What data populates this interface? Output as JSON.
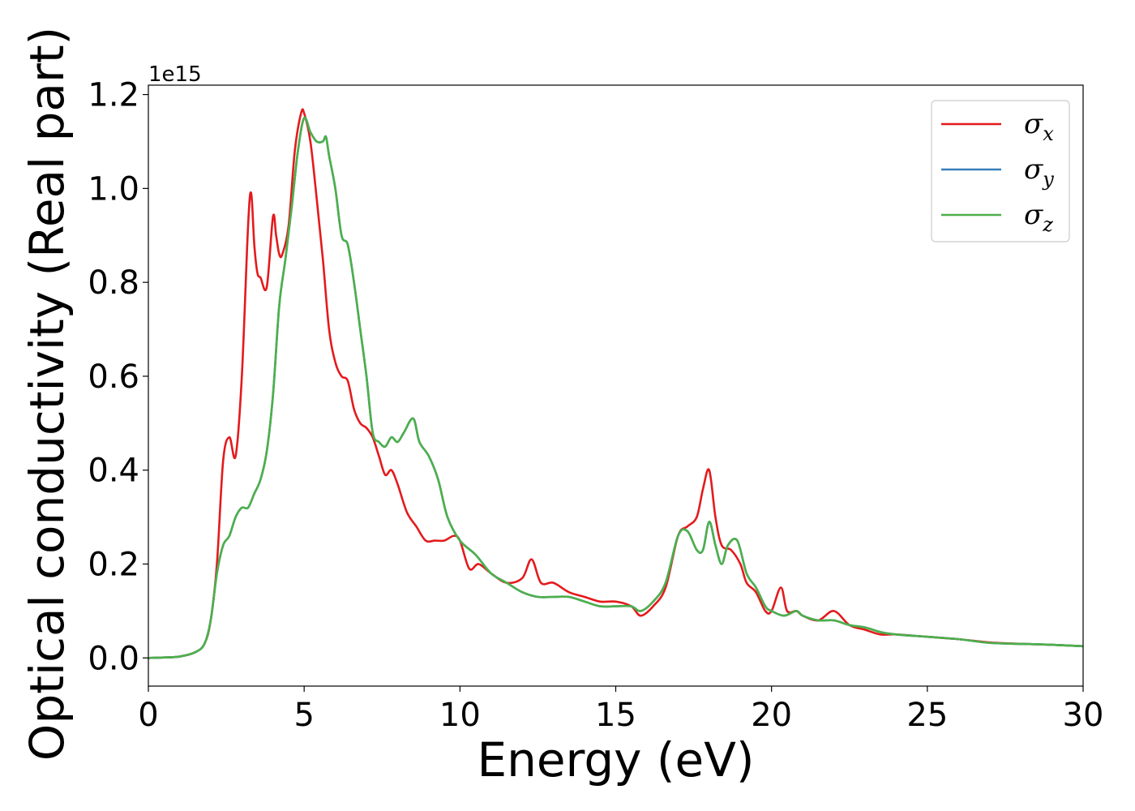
{
  "chart_data": {
    "type": "line",
    "xlabel": "Energy (eV)",
    "ylabel": "Optical conductivity (Real part)",
    "y_offset_text": "1e15",
    "xlim": [
      0,
      30
    ],
    "ylim": [
      -0.06,
      1.22
    ],
    "xticks": [
      0,
      5,
      10,
      15,
      20,
      25,
      30
    ],
    "xtick_labels": [
      "0",
      "5",
      "10",
      "15",
      "20",
      "25",
      "30"
    ],
    "yticks": [
      0.0,
      0.2,
      0.4,
      0.6,
      0.8,
      1.0,
      1.2
    ],
    "ytick_labels": [
      "0.0",
      "0.2",
      "0.4",
      "0.6",
      "0.8",
      "1.0",
      "1.2"
    ],
    "legend_position": "top-right",
    "grid": false,
    "series": [
      {
        "name": "σx",
        "name_base": "σ",
        "name_sub": "x",
        "color": "#e41a1c",
        "x": [
          0,
          0.5,
          1.0,
          1.5,
          1.8,
          2.0,
          2.2,
          2.4,
          2.6,
          2.8,
          3.0,
          3.2,
          3.3,
          3.4,
          3.5,
          3.6,
          3.8,
          4.0,
          4.1,
          4.2,
          4.3,
          4.5,
          4.7,
          4.9,
          5.0,
          5.2,
          5.4,
          5.6,
          5.8,
          6.0,
          6.2,
          6.4,
          6.6,
          6.8,
          7.0,
          7.2,
          7.4,
          7.6,
          7.8,
          8.0,
          8.3,
          8.6,
          8.9,
          9.2,
          9.5,
          9.8,
          10.0,
          10.3,
          10.6,
          11.0,
          11.5,
          12.0,
          12.3,
          12.6,
          13.0,
          13.5,
          14.0,
          14.5,
          15.0,
          15.5,
          15.8,
          16.2,
          16.6,
          17.0,
          17.3,
          17.6,
          17.8,
          18.0,
          18.2,
          18.4,
          18.7,
          19.0,
          19.2,
          19.5,
          19.8,
          20.0,
          20.3,
          20.5,
          20.8,
          21.0,
          21.5,
          22.0,
          22.5,
          23.0,
          23.5,
          24.0,
          25.0,
          26.0,
          27.0,
          28.0,
          29.0,
          30.0
        ],
        "y": [
          0.0,
          0.001,
          0.003,
          0.012,
          0.03,
          0.08,
          0.2,
          0.42,
          0.47,
          0.43,
          0.6,
          0.92,
          0.99,
          0.88,
          0.82,
          0.81,
          0.79,
          0.94,
          0.9,
          0.86,
          0.86,
          0.92,
          1.08,
          1.16,
          1.16,
          1.1,
          0.98,
          0.85,
          0.7,
          0.63,
          0.6,
          0.59,
          0.53,
          0.5,
          0.49,
          0.47,
          0.43,
          0.39,
          0.4,
          0.37,
          0.31,
          0.28,
          0.25,
          0.25,
          0.25,
          0.26,
          0.25,
          0.19,
          0.2,
          0.18,
          0.16,
          0.17,
          0.21,
          0.16,
          0.16,
          0.14,
          0.13,
          0.12,
          0.12,
          0.11,
          0.09,
          0.11,
          0.15,
          0.26,
          0.28,
          0.3,
          0.36,
          0.4,
          0.3,
          0.24,
          0.23,
          0.2,
          0.16,
          0.14,
          0.1,
          0.1,
          0.15,
          0.1,
          0.1,
          0.09,
          0.08,
          0.1,
          0.07,
          0.06,
          0.05,
          0.05,
          0.045,
          0.04,
          0.033,
          0.03,
          0.028,
          0.025
        ]
      },
      {
        "name": "σy",
        "name_base": "σ",
        "name_sub": "y",
        "color": "#377eb8",
        "x": [
          0,
          0.5,
          1.0,
          1.5,
          1.8,
          2.0,
          2.2,
          2.4,
          2.6,
          2.8,
          3.0,
          3.2,
          3.4,
          3.6,
          3.8,
          4.0,
          4.2,
          4.4,
          4.6,
          4.8,
          5.0,
          5.2,
          5.4,
          5.6,
          5.7,
          5.8,
          6.0,
          6.2,
          6.4,
          6.6,
          6.8,
          7.0,
          7.2,
          7.4,
          7.6,
          7.8,
          8.0,
          8.2,
          8.5,
          8.7,
          9.0,
          9.3,
          9.6,
          10.0,
          10.5,
          11.0,
          11.5,
          12.0,
          12.5,
          13.0,
          13.5,
          14.0,
          14.5,
          15.0,
          15.5,
          15.8,
          16.2,
          16.6,
          17.0,
          17.3,
          17.6,
          17.8,
          18.0,
          18.2,
          18.4,
          18.6,
          18.9,
          19.2,
          19.5,
          19.8,
          20.0,
          20.4,
          20.8,
          21.0,
          21.5,
          22.0,
          22.5,
          23.0,
          23.5,
          24.0,
          25.0,
          26.0,
          27.0,
          28.0,
          29.0,
          30.0
        ],
        "y": [
          0.0,
          0.001,
          0.003,
          0.012,
          0.03,
          0.08,
          0.18,
          0.24,
          0.26,
          0.3,
          0.32,
          0.32,
          0.35,
          0.38,
          0.44,
          0.56,
          0.75,
          0.85,
          0.96,
          1.08,
          1.15,
          1.12,
          1.1,
          1.1,
          1.11,
          1.07,
          1.0,
          0.9,
          0.88,
          0.8,
          0.7,
          0.6,
          0.48,
          0.46,
          0.45,
          0.47,
          0.46,
          0.48,
          0.51,
          0.46,
          0.43,
          0.38,
          0.3,
          0.25,
          0.22,
          0.18,
          0.16,
          0.14,
          0.13,
          0.13,
          0.13,
          0.12,
          0.11,
          0.11,
          0.11,
          0.1,
          0.12,
          0.16,
          0.26,
          0.27,
          0.23,
          0.23,
          0.29,
          0.24,
          0.2,
          0.24,
          0.25,
          0.18,
          0.15,
          0.11,
          0.1,
          0.09,
          0.1,
          0.09,
          0.08,
          0.08,
          0.07,
          0.065,
          0.055,
          0.05,
          0.045,
          0.04,
          0.032,
          0.03,
          0.028,
          0.025
        ]
      },
      {
        "name": "σz",
        "name_base": "σ",
        "name_sub": "z",
        "color": "#4daf4a",
        "x": [
          0,
          0.5,
          1.0,
          1.5,
          1.8,
          2.0,
          2.2,
          2.4,
          2.6,
          2.8,
          3.0,
          3.2,
          3.4,
          3.6,
          3.8,
          4.0,
          4.2,
          4.4,
          4.6,
          4.8,
          5.0,
          5.2,
          5.4,
          5.6,
          5.7,
          5.8,
          6.0,
          6.2,
          6.4,
          6.6,
          6.8,
          7.0,
          7.2,
          7.4,
          7.6,
          7.8,
          8.0,
          8.2,
          8.5,
          8.7,
          9.0,
          9.3,
          9.6,
          10.0,
          10.5,
          11.0,
          11.5,
          12.0,
          12.5,
          13.0,
          13.5,
          14.0,
          14.5,
          15.0,
          15.5,
          15.8,
          16.2,
          16.6,
          17.0,
          17.3,
          17.6,
          17.8,
          18.0,
          18.2,
          18.4,
          18.6,
          18.9,
          19.2,
          19.5,
          19.8,
          20.0,
          20.4,
          20.8,
          21.0,
          21.5,
          22.0,
          22.5,
          23.0,
          23.5,
          24.0,
          25.0,
          26.0,
          27.0,
          28.0,
          29.0,
          30.0
        ],
        "y": [
          0.0,
          0.001,
          0.003,
          0.012,
          0.03,
          0.08,
          0.18,
          0.24,
          0.26,
          0.3,
          0.32,
          0.32,
          0.35,
          0.38,
          0.44,
          0.56,
          0.75,
          0.85,
          0.96,
          1.08,
          1.15,
          1.12,
          1.1,
          1.1,
          1.11,
          1.07,
          1.0,
          0.9,
          0.88,
          0.8,
          0.7,
          0.6,
          0.48,
          0.46,
          0.45,
          0.47,
          0.46,
          0.48,
          0.51,
          0.46,
          0.43,
          0.38,
          0.3,
          0.25,
          0.22,
          0.18,
          0.16,
          0.14,
          0.13,
          0.13,
          0.13,
          0.12,
          0.11,
          0.11,
          0.11,
          0.1,
          0.12,
          0.16,
          0.26,
          0.27,
          0.23,
          0.23,
          0.29,
          0.24,
          0.2,
          0.24,
          0.25,
          0.18,
          0.15,
          0.11,
          0.1,
          0.09,
          0.1,
          0.09,
          0.08,
          0.08,
          0.07,
          0.065,
          0.055,
          0.05,
          0.045,
          0.04,
          0.032,
          0.03,
          0.028,
          0.025
        ]
      }
    ]
  }
}
